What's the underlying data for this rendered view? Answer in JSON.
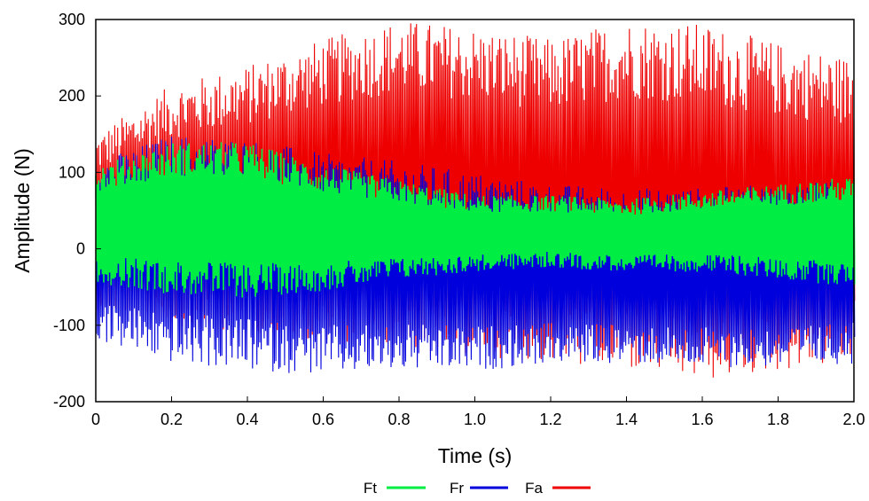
{
  "chart_data": {
    "type": "line",
    "title": "",
    "xlabel": "Time (s)",
    "ylabel": "Amplitude (N)",
    "xlim": [
      0,
      2.0
    ],
    "ylim": [
      -200,
      300
    ],
    "x_ticks": [
      0,
      0.2,
      0.4,
      0.6,
      0.8,
      1.0,
      1.2,
      1.4,
      1.6,
      1.8,
      2.0
    ],
    "x_tick_labels": [
      "0",
      "0.2",
      "0.4",
      "0.6",
      "0.8",
      "1.0",
      "1.2",
      "1.4",
      "1.6",
      "1.8",
      "2.0"
    ],
    "y_ticks": [
      -200,
      -100,
      0,
      100,
      200,
      300
    ],
    "y_tick_labels": [
      "-200",
      "-100",
      "0",
      "100",
      "200",
      "300"
    ],
    "grid": false,
    "legend_position": "bottom-center",
    "series": [
      {
        "name": "Ft",
        "color": "#00ee44",
        "x": [
          0,
          0.2,
          0.4,
          0.6,
          0.8,
          1.0,
          1.2,
          1.4,
          1.6,
          1.8,
          2.0
        ],
        "upper": [
          110,
          140,
          140,
          110,
          90,
          70,
          70,
          65,
          75,
          85,
          95
        ],
        "lower": [
          -45,
          -60,
          -65,
          -55,
          -40,
          -30,
          -25,
          -30,
          -30,
          -40,
          -50
        ]
      },
      {
        "name": "Fr",
        "color": "#0000dd",
        "x": [
          0,
          0.2,
          0.4,
          0.6,
          0.8,
          1.0,
          1.2,
          1.4,
          1.6,
          1.8,
          2.0
        ],
        "upper": [
          115,
          150,
          145,
          125,
          115,
          100,
          85,
          80,
          80,
          85,
          90
        ],
        "lower": [
          -120,
          -150,
          -160,
          -165,
          -160,
          -160,
          -150,
          -150,
          -155,
          -155,
          -150
        ]
      },
      {
        "name": "Fa",
        "color": "#ee0000",
        "x": [
          0,
          0.2,
          0.4,
          0.6,
          0.8,
          1.0,
          1.2,
          1.4,
          1.6,
          1.8,
          2.0
        ],
        "upper": [
          150,
          215,
          240,
          275,
          300,
          290,
          275,
          300,
          295,
          270,
          250
        ],
        "lower": [
          -80,
          -100,
          -110,
          -120,
          -130,
          -140,
          -150,
          -160,
          -175,
          -160,
          -150
        ]
      }
    ]
  }
}
